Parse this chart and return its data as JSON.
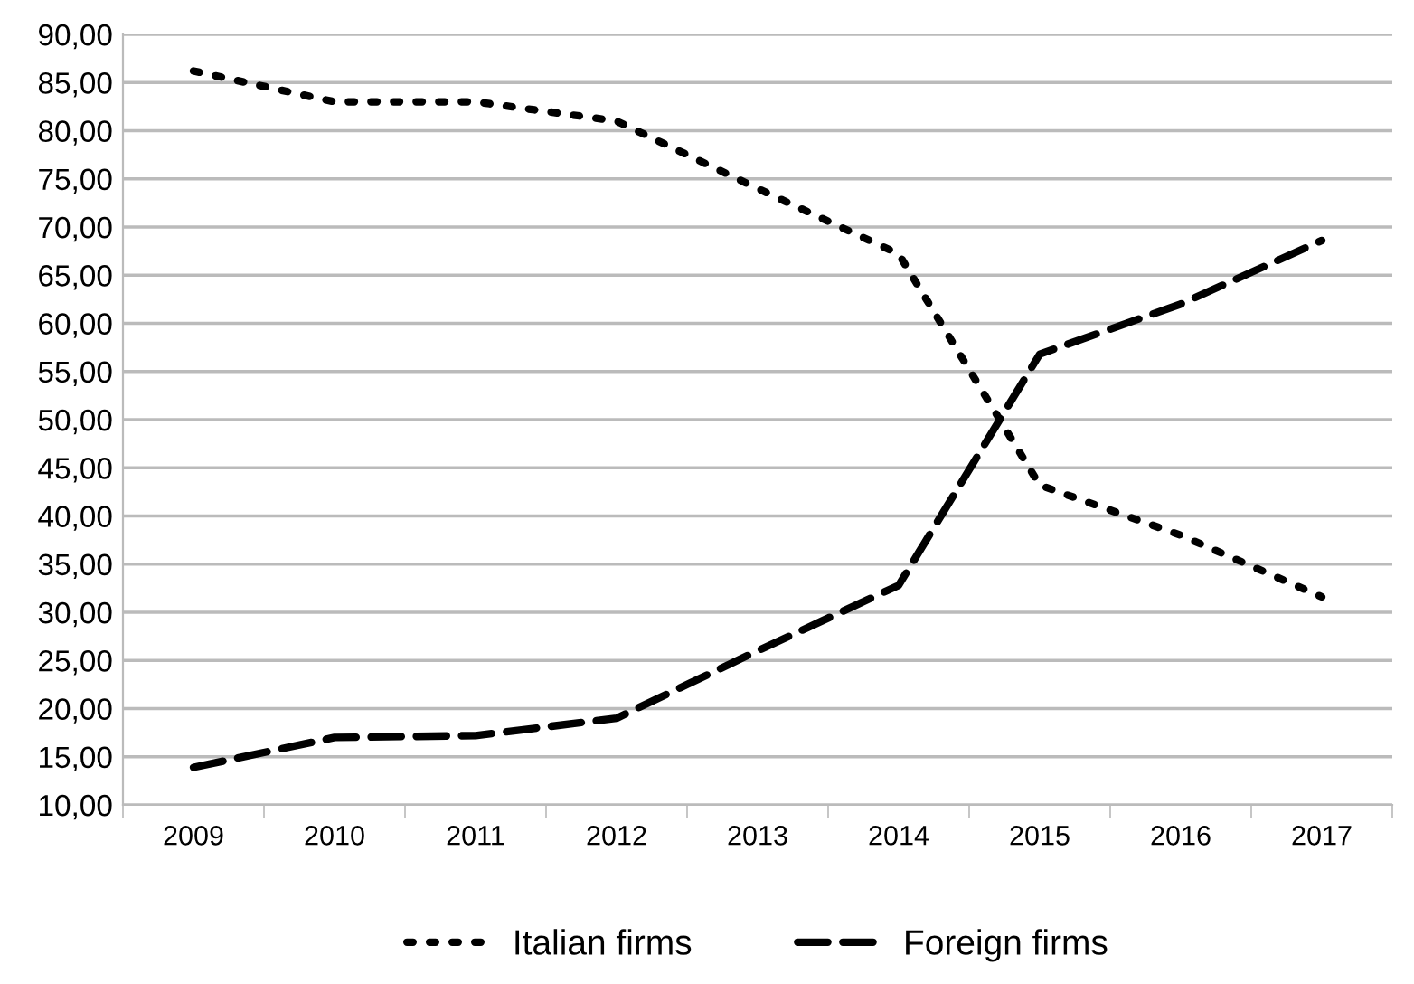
{
  "chart_data": {
    "type": "line",
    "categories": [
      "2009",
      "2010",
      "2011",
      "2012",
      "2013",
      "2014",
      "2015",
      "2016",
      "2017"
    ],
    "series": [
      {
        "name": "Italian firms",
        "color": "#000000",
        "line_style": "dotted",
        "values": [
          86.2,
          83,
          83,
          81,
          74,
          67.2,
          43.2,
          38,
          31.6
        ]
      },
      {
        "name": "Foreign firms",
        "color": "#000000",
        "line_style": "dashed",
        "values": [
          13.9,
          17,
          17.2,
          19,
          26,
          32.8,
          56.8,
          62,
          68.6
        ]
      }
    ],
    "ylim": [
      10,
      90
    ],
    "yticks": [
      {
        "value": 10,
        "label": "10,00"
      },
      {
        "value": 15,
        "label": "15,00"
      },
      {
        "value": 20,
        "label": "20,00"
      },
      {
        "value": 25,
        "label": "25,00"
      },
      {
        "value": 30,
        "label": "30,00"
      },
      {
        "value": 35,
        "label": "35,00"
      },
      {
        "value": 40,
        "label": "40,00"
      },
      {
        "value": 45,
        "label": "45,00"
      },
      {
        "value": 50,
        "label": "50,00"
      },
      {
        "value": 55,
        "label": "55,00"
      },
      {
        "value": 60,
        "label": "60,00"
      },
      {
        "value": 65,
        "label": "65,00"
      },
      {
        "value": 70,
        "label": "70,00"
      },
      {
        "value": 75,
        "label": "75,00"
      },
      {
        "value": 80,
        "label": "80,00"
      },
      {
        "value": 85,
        "label": "85,00"
      },
      {
        "value": 90,
        "label": "90,00"
      }
    ],
    "grid": "y",
    "legend": "bottom"
  }
}
